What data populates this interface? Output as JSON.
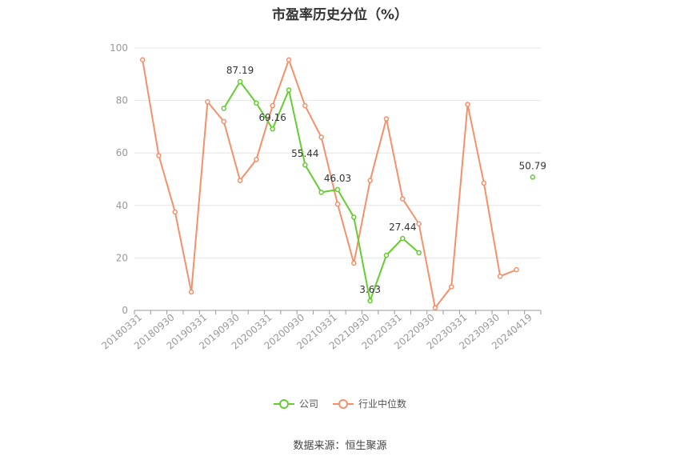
{
  "chart_data": {
    "type": "line",
    "title": "市盈率历史分位（%）",
    "ylim": [
      0,
      100
    ],
    "yticks": [
      0,
      20,
      40,
      60,
      80,
      100
    ],
    "x_tick_labels": [
      "20180331",
      "20180930",
      "20190331",
      "20190930",
      "20200331",
      "20200930",
      "20210331",
      "20210930",
      "20220331",
      "20220930",
      "20230331",
      "20230930",
      "20240419"
    ],
    "series": [
      {
        "name": "公司",
        "color": "#66cc33",
        "values": [
          null,
          null,
          null,
          null,
          null,
          77,
          87.19,
          79,
          69.16,
          84,
          55.44,
          45,
          46.03,
          35.5,
          3.63,
          21,
          27.44,
          22,
          null,
          null,
          null,
          null,
          null,
          null,
          50.79
        ]
      },
      {
        "name": "行业中位数",
        "color": "#f4916b",
        "values": [
          95.5,
          59,
          37.5,
          7,
          79.5,
          72,
          49.5,
          57.5,
          78,
          95.5,
          78,
          66,
          40.5,
          18,
          49.5,
          73,
          42.5,
          33,
          1,
          9,
          78.5,
          48.5,
          13,
          15.5,
          null
        ]
      }
    ],
    "data_labels": [
      {
        "series": 0,
        "index": 6,
        "text": "87.19"
      },
      {
        "series": 0,
        "index": 8,
        "text": "69.16"
      },
      {
        "series": 0,
        "index": 10,
        "text": "55.44"
      },
      {
        "series": 0,
        "index": 12,
        "text": "46.03"
      },
      {
        "series": 0,
        "index": 14,
        "text": "3.63"
      },
      {
        "series": 0,
        "index": 16,
        "text": "27.44"
      },
      {
        "series": 0,
        "index": 24,
        "text": "50.79"
      }
    ],
    "grid": true,
    "legend_position": "bottom"
  },
  "source_text": "数据来源：恒生聚源"
}
